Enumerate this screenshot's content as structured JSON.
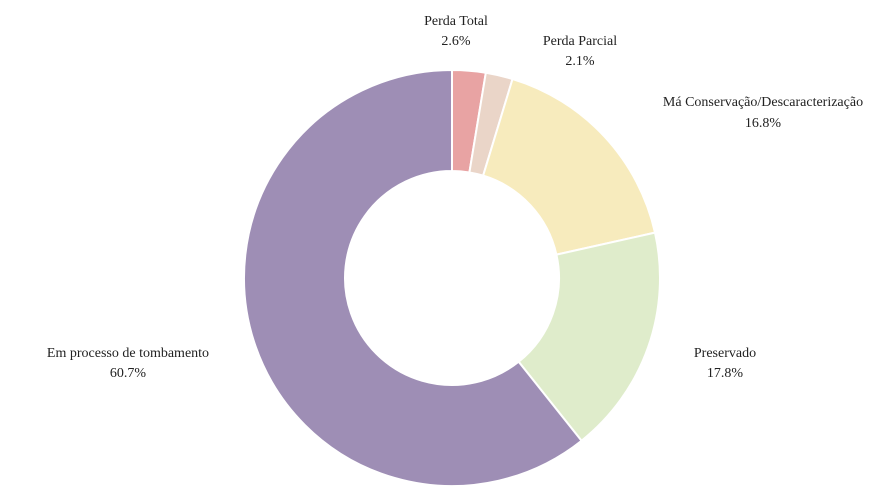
{
  "chart_data": {
    "type": "pie",
    "variant": "donut",
    "title": "",
    "start": "top, clockwise",
    "legend": "none",
    "slices": [
      {
        "name": "Perda Total",
        "value": 2.6,
        "label": "2.6%",
        "color": "#e8a3a3"
      },
      {
        "name": "Perda Parcial",
        "value": 2.1,
        "label": "2.1%",
        "color": "#ead5c8"
      },
      {
        "name": "Má Conservação/Descaracterização",
        "value": 16.8,
        "label": "16.8%",
        "color": "#f7ebbd"
      },
      {
        "name": "Preservado",
        "value": 17.8,
        "label": "17.8%",
        "color": "#dfeccb"
      },
      {
        "name": "Em processo de tombamento",
        "value": 60.7,
        "label": "60.7%",
        "color": "#9e8eb5"
      }
    ]
  }
}
